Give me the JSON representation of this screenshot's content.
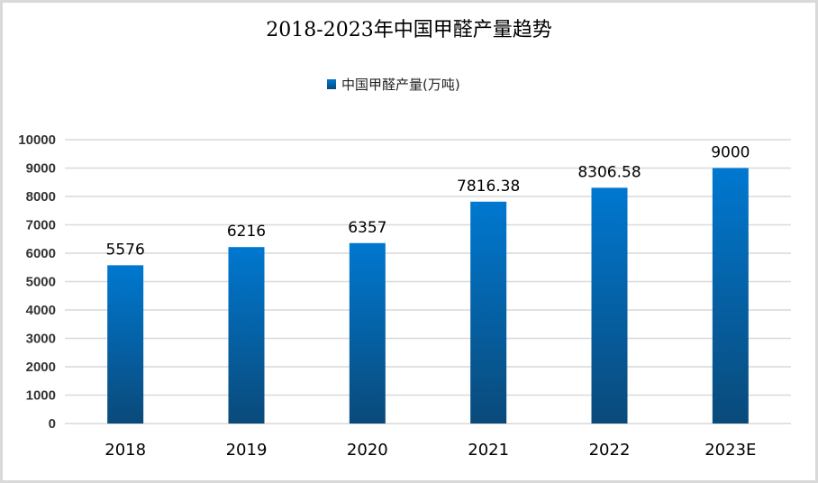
{
  "chart_data": {
    "type": "bar",
    "title": "2018-2023年中国甲醛产量趋势",
    "categories": [
      "2018",
      "2019",
      "2020",
      "2021",
      "2022",
      "2023E"
    ],
    "series": [
      {
        "name": "中国甲醛产量(万吨)",
        "values": [
          5576,
          6216,
          6357,
          7816.38,
          8306.58,
          9000
        ]
      }
    ],
    "data_labels": [
      "5576",
      "6216",
      "6357",
      "7816.38",
      "8306.58",
      "9000"
    ],
    "xlabel": "",
    "ylabel": "",
    "ylim": [
      0,
      10000
    ],
    "yticks": [
      0,
      1000,
      2000,
      3000,
      4000,
      5000,
      6000,
      7000,
      8000,
      9000,
      10000
    ],
    "grid": true,
    "legend": "top",
    "colors": {
      "bar_top": "#0078d0",
      "bar_bottom": "#0a4a7a",
      "grid": "#d9d9d9"
    }
  }
}
